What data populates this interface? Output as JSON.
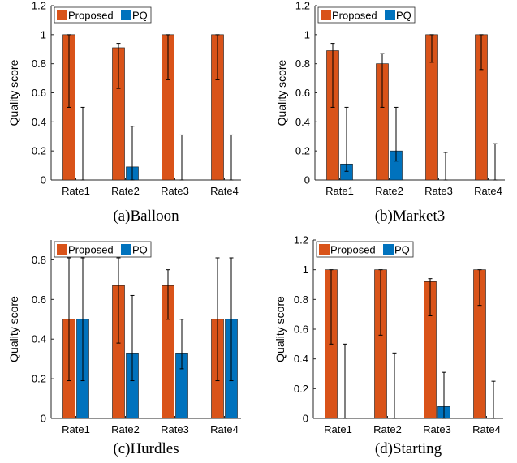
{
  "colors": {
    "proposed": "#D95319",
    "pq": "#0072BD",
    "error_bar": "#000000",
    "axis": "#262626"
  },
  "chart_data": [
    {
      "type": "bar",
      "caption": "(a)Balloon",
      "ylabel": "Quality score",
      "categories": [
        "Rate1",
        "Rate2",
        "Rate3",
        "Rate4"
      ],
      "ylim": [
        0,
        1.2
      ],
      "yticks": [
        "0",
        "0.2",
        "0.4",
        "0.6",
        "0.8",
        "1",
        "1.2"
      ],
      "legend": "top-left",
      "series": [
        {
          "name": "Proposed",
          "values": [
            1.0,
            0.91,
            1.0,
            1.0
          ],
          "err_low": [
            0.5,
            0.63,
            0.69,
            0.69
          ],
          "err_high": [
            1.0,
            0.94,
            1.0,
            1.0
          ]
        },
        {
          "name": "PQ",
          "values": [
            0.0,
            0.09,
            0.0,
            0.0
          ],
          "err_low": [
            0.0,
            0.0,
            0.0,
            0.0
          ],
          "err_high": [
            0.5,
            0.37,
            0.31,
            0.31
          ]
        }
      ]
    },
    {
      "type": "bar",
      "caption": "(b)Market3",
      "ylabel": "Quality score",
      "categories": [
        "Rate1",
        "Rate2",
        "Rate3",
        "Rate4"
      ],
      "ylim": [
        0,
        1.2
      ],
      "yticks": [
        "0",
        "0.2",
        "0.4",
        "0.6",
        "0.8",
        "1",
        "1.2"
      ],
      "legend": "top-left",
      "series": [
        {
          "name": "Proposed",
          "values": [
            0.89,
            0.8,
            1.0,
            1.0
          ],
          "err_low": [
            0.5,
            0.5,
            0.81,
            0.76
          ],
          "err_high": [
            0.94,
            0.87,
            1.0,
            1.0
          ]
        },
        {
          "name": "PQ",
          "values": [
            0.11,
            0.2,
            0.0,
            0.0
          ],
          "err_low": [
            0.06,
            0.13,
            0.0,
            0.0
          ],
          "err_high": [
            0.5,
            0.5,
            0.19,
            0.25
          ]
        }
      ]
    },
    {
      "type": "bar",
      "caption": "(c)Hurdles",
      "ylabel": "Quality score",
      "categories": [
        "Rate1",
        "Rate2",
        "Rate3",
        "Rate4"
      ],
      "ylim": [
        0,
        0.9
      ],
      "yticks": [
        "0",
        "0.2",
        "0.4",
        "0.6",
        "0.8"
      ],
      "legend": "top-left",
      "series": [
        {
          "name": "Proposed",
          "values": [
            0.5,
            0.67,
            0.67,
            0.5
          ],
          "err_low": [
            0.19,
            0.38,
            0.5,
            0.19
          ],
          "err_high": [
            0.81,
            0.81,
            0.75,
            0.81
          ]
        },
        {
          "name": "PQ",
          "values": [
            0.5,
            0.33,
            0.33,
            0.5
          ],
          "err_low": [
            0.19,
            0.19,
            0.25,
            0.19
          ],
          "err_high": [
            0.81,
            0.62,
            0.5,
            0.81
          ]
        }
      ]
    },
    {
      "type": "bar",
      "caption": "(d)Starting",
      "ylabel": "Quality score",
      "categories": [
        "Rate1",
        "Rate2",
        "Rate3",
        "Rate4"
      ],
      "ylim": [
        0,
        1.2
      ],
      "yticks": [
        "0",
        "0.2",
        "0.4",
        "0.6",
        "0.8",
        "1",
        "1.2"
      ],
      "legend": "top-left",
      "series": [
        {
          "name": "Proposed",
          "values": [
            1.0,
            1.0,
            0.92,
            1.0
          ],
          "err_low": [
            0.5,
            0.56,
            0.69,
            0.76
          ],
          "err_high": [
            1.0,
            1.0,
            0.94,
            1.0
          ]
        },
        {
          "name": "PQ",
          "values": [
            0.0,
            0.0,
            0.08,
            0.0
          ],
          "err_low": [
            0.0,
            0.0,
            0.0,
            0.0
          ],
          "err_high": [
            0.5,
            0.44,
            0.31,
            0.25
          ]
        }
      ]
    }
  ]
}
